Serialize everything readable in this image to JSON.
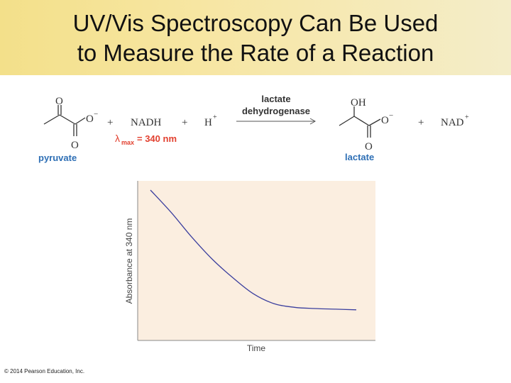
{
  "slide": {
    "title_line1": "UV/Vis Spectroscopy Can Be Used",
    "title_line2": "to Measure the Rate of a Reaction",
    "copyright": "© 2014 Pearson Education, Inc."
  },
  "reaction": {
    "reactant_label": "pyruvate",
    "product_label": "lactate",
    "plus": "+",
    "nadh": "NADH",
    "h": "H",
    "h_charge": "+",
    "nad": "NAD",
    "nad_charge": "+",
    "enzyme_line1": "lactate",
    "enzyme_line2": "dehydrogenase",
    "lambda_symbol": "λ",
    "lambda_sub": "max",
    "lambda_value": "= 340 nm",
    "atom_o": "O",
    "atom_oh": "OH",
    "anion": "O",
    "anion_charge": "−",
    "colors": {
      "accent_red": "#e2402f",
      "label_blue": "#2e6fb5"
    }
  },
  "chart_data": {
    "type": "line",
    "xlabel": "Time",
    "ylabel": "Absorbance at 340 nm",
    "x": [
      0,
      0.1,
      0.2,
      0.3,
      0.4,
      0.5,
      0.6,
      0.7,
      0.8,
      0.9,
      1.0
    ],
    "series": [
      {
        "values": [
          1.0,
          0.82,
          0.62,
          0.44,
          0.29,
          0.16,
          0.08,
          0.05,
          0.04,
          0.035,
          0.03
        ]
      }
    ],
    "grid": false,
    "background": "#fbeee0",
    "line_color": "#3b3f9e"
  }
}
